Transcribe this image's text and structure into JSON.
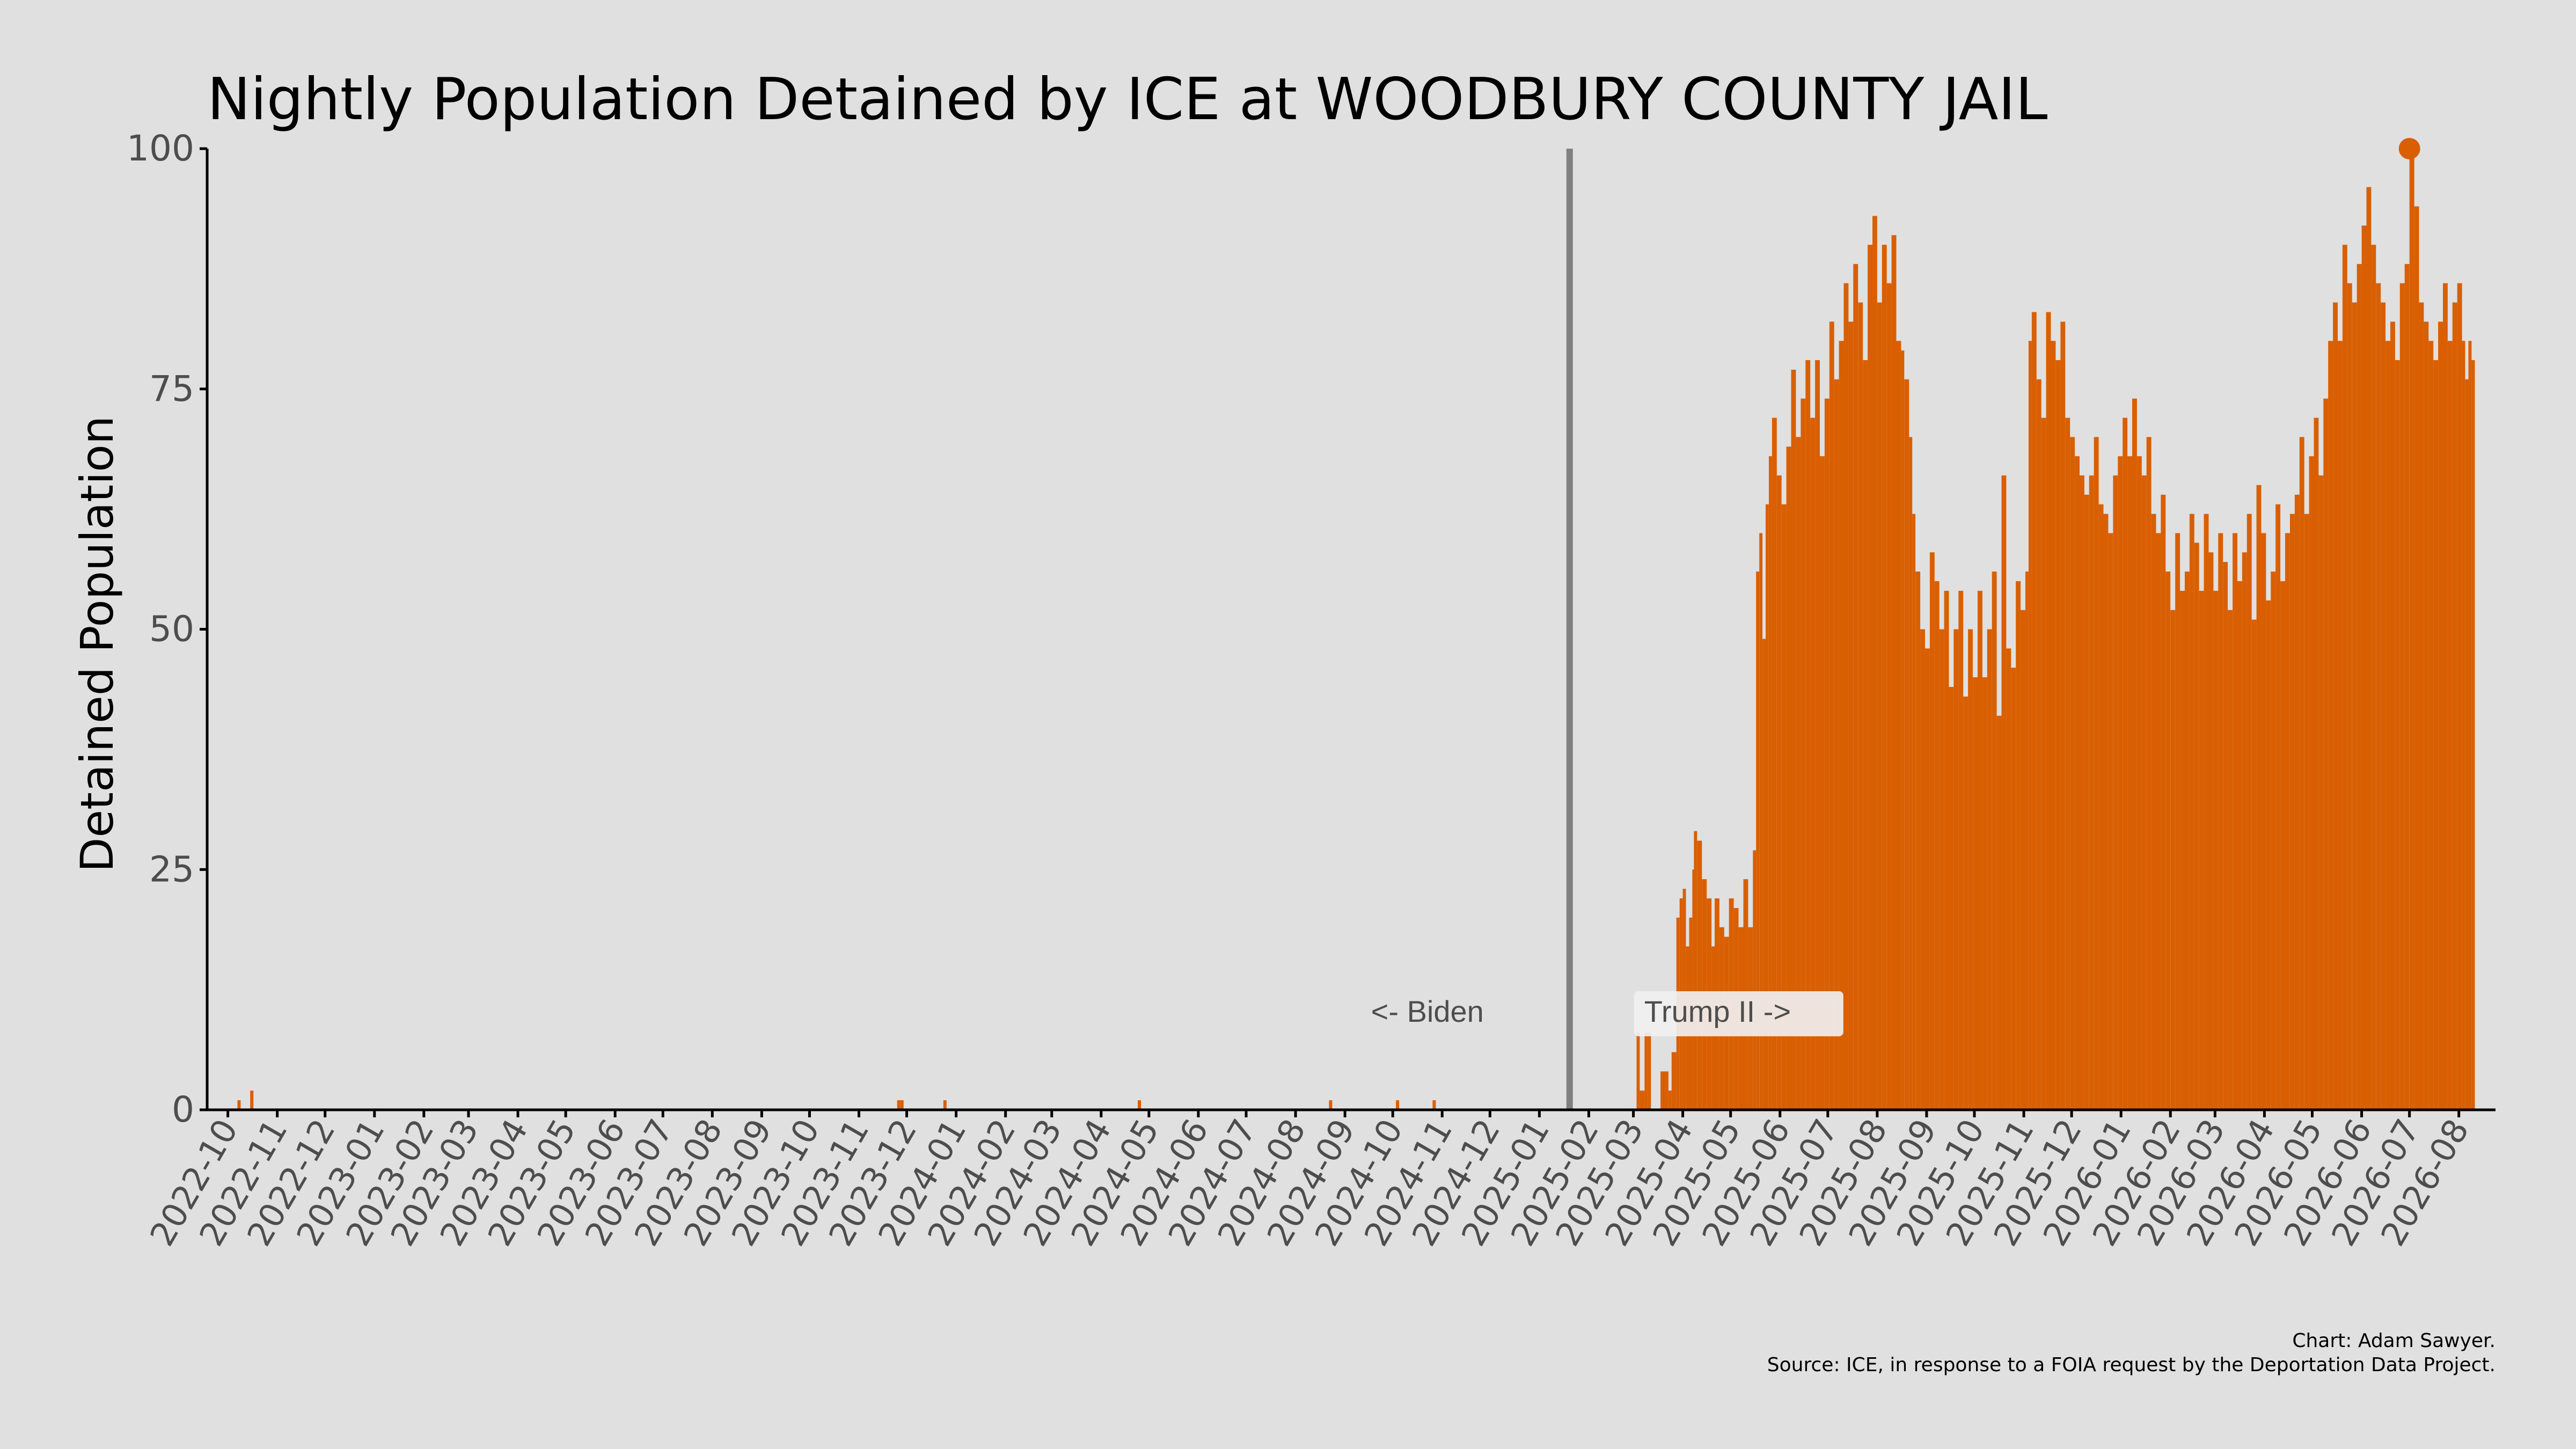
{
  "chart_data": {
    "type": "bar",
    "title": "Nightly Population Detained by ICE at WOODBURY COUNTY JAIL",
    "xlabel": "",
    "ylabel": "Detained Population",
    "x_axis": "date",
    "xlim": [
      "2022-09-18",
      "2026-08-24"
    ],
    "ylim": [
      0,
      100
    ],
    "y_ticks": [
      0,
      25,
      50,
      75,
      100
    ],
    "x_ticks": [
      "2022-10",
      "2022-11",
      "2022-12",
      "2023-01",
      "2023-02",
      "2023-03",
      "2023-04",
      "2023-05",
      "2023-06",
      "2023-07",
      "2023-08",
      "2023-09",
      "2023-10",
      "2023-11",
      "2023-12",
      "2024-01",
      "2024-02",
      "2024-03",
      "2024-04",
      "2024-05",
      "2024-06",
      "2024-07",
      "2024-08",
      "2024-09",
      "2024-10",
      "2024-11",
      "2024-12",
      "2025-01",
      "2025-02",
      "2025-03",
      "2025-04",
      "2025-05",
      "2025-06",
      "2025-07",
      "2025-08",
      "2025-09",
      "2025-10",
      "2025-11",
      "2025-12",
      "2026-01",
      "2026-02",
      "2026-03",
      "2026-04",
      "2026-05",
      "2026-06",
      "2026-07",
      "2026-08"
    ],
    "grid": false,
    "colors": {
      "bars": "#d95f02",
      "divider": "#808080",
      "background": "#e0e0e0",
      "axis": "#000000"
    },
    "divider": {
      "date": "2025-01-20",
      "left_label": "<- Biden",
      "right_label": "Trump II ->"
    },
    "peak_marker": {
      "date": "2026-07-01",
      "value": 100
    },
    "series": [
      {
        "points": [
          [
            "2022-10-07",
            1
          ],
          [
            "2022-10-15",
            2
          ],
          [
            "2023-11-25",
            1
          ],
          [
            "2023-11-27",
            1
          ],
          [
            "2023-12-24",
            1
          ],
          [
            "2024-04-24",
            1
          ],
          [
            "2024-08-22",
            1
          ],
          [
            "2024-10-03",
            1
          ],
          [
            "2024-10-26",
            1
          ],
          [
            "2025-03-03",
            8
          ],
          [
            "2025-03-05",
            2
          ],
          [
            "2025-03-08",
            8
          ],
          [
            "2025-03-10",
            8
          ],
          [
            "2025-03-18",
            4
          ],
          [
            "2025-03-20",
            4
          ],
          [
            "2025-03-23",
            2
          ],
          [
            "2025-03-25",
            6
          ],
          [
            "2025-03-28",
            20
          ],
          [
            "2025-03-30",
            22
          ],
          [
            "2025-04-01",
            23
          ],
          [
            "2025-04-03",
            17
          ],
          [
            "2025-04-05",
            20
          ],
          [
            "2025-04-07",
            25
          ],
          [
            "2025-04-08",
            29
          ],
          [
            "2025-04-10",
            28
          ],
          [
            "2025-04-13",
            24
          ],
          [
            "2025-04-16",
            22
          ],
          [
            "2025-04-19",
            17
          ],
          [
            "2025-04-21",
            22
          ],
          [
            "2025-04-24",
            19
          ],
          [
            "2025-04-27",
            18
          ],
          [
            "2025-04-30",
            22
          ],
          [
            "2025-05-03",
            21
          ],
          [
            "2025-05-06",
            19
          ],
          [
            "2025-05-09",
            24
          ],
          [
            "2025-05-12",
            19
          ],
          [
            "2025-05-15",
            27
          ],
          [
            "2025-05-17",
            56
          ],
          [
            "2025-05-19",
            60
          ],
          [
            "2025-05-21",
            49
          ],
          [
            "2025-05-23",
            63
          ],
          [
            "2025-05-25",
            68
          ],
          [
            "2025-05-27",
            72
          ],
          [
            "2025-05-30",
            66
          ],
          [
            "2025-06-02",
            63
          ],
          [
            "2025-06-05",
            69
          ],
          [
            "2025-06-08",
            77
          ],
          [
            "2025-06-11",
            70
          ],
          [
            "2025-06-14",
            74
          ],
          [
            "2025-06-17",
            78
          ],
          [
            "2025-06-20",
            72
          ],
          [
            "2025-06-23",
            78
          ],
          [
            "2025-06-26",
            68
          ],
          [
            "2025-06-29",
            74
          ],
          [
            "2025-07-02",
            82
          ],
          [
            "2025-07-05",
            76
          ],
          [
            "2025-07-08",
            80
          ],
          [
            "2025-07-11",
            86
          ],
          [
            "2025-07-14",
            82
          ],
          [
            "2025-07-17",
            88
          ],
          [
            "2025-07-20",
            84
          ],
          [
            "2025-07-23",
            78
          ],
          [
            "2025-07-26",
            90
          ],
          [
            "2025-07-29",
            93
          ],
          [
            "2025-08-01",
            84
          ],
          [
            "2025-08-04",
            90
          ],
          [
            "2025-08-07",
            86
          ],
          [
            "2025-08-10",
            91
          ],
          [
            "2025-08-13",
            80
          ],
          [
            "2025-08-16",
            79
          ],
          [
            "2025-08-18",
            76
          ],
          [
            "2025-08-21",
            70
          ],
          [
            "2025-08-23",
            62
          ],
          [
            "2025-08-25",
            56
          ],
          [
            "2025-08-28",
            50
          ],
          [
            "2025-08-31",
            48
          ],
          [
            "2025-09-03",
            58
          ],
          [
            "2025-09-06",
            55
          ],
          [
            "2025-09-09",
            50
          ],
          [
            "2025-09-12",
            54
          ],
          [
            "2025-09-15",
            44
          ],
          [
            "2025-09-18",
            50
          ],
          [
            "2025-09-21",
            54
          ],
          [
            "2025-09-24",
            43
          ],
          [
            "2025-09-27",
            50
          ],
          [
            "2025-09-30",
            45
          ],
          [
            "2025-10-03",
            54
          ],
          [
            "2025-10-06",
            45
          ],
          [
            "2025-10-09",
            50
          ],
          [
            "2025-10-12",
            56
          ],
          [
            "2025-10-15",
            41
          ],
          [
            "2025-10-18",
            66
          ],
          [
            "2025-10-21",
            48
          ],
          [
            "2025-10-24",
            46
          ],
          [
            "2025-10-27",
            55
          ],
          [
            "2025-10-30",
            52
          ],
          [
            "2025-11-02",
            56
          ],
          [
            "2025-11-04",
            80
          ],
          [
            "2025-11-06",
            83
          ],
          [
            "2025-11-09",
            76
          ],
          [
            "2025-11-12",
            72
          ],
          [
            "2025-11-15",
            83
          ],
          [
            "2025-11-18",
            80
          ],
          [
            "2025-11-21",
            78
          ],
          [
            "2025-11-24",
            82
          ],
          [
            "2025-11-27",
            72
          ],
          [
            "2025-11-30",
            70
          ],
          [
            "2025-12-03",
            68
          ],
          [
            "2025-12-06",
            66
          ],
          [
            "2025-12-09",
            64
          ],
          [
            "2025-12-12",
            66
          ],
          [
            "2025-12-15",
            70
          ],
          [
            "2025-12-18",
            63
          ],
          [
            "2025-12-21",
            62
          ],
          [
            "2025-12-24",
            60
          ],
          [
            "2025-12-27",
            66
          ],
          [
            "2025-12-30",
            68
          ],
          [
            "2026-01-02",
            72
          ],
          [
            "2026-01-05",
            68
          ],
          [
            "2026-01-08",
            74
          ],
          [
            "2026-01-11",
            68
          ],
          [
            "2026-01-14",
            66
          ],
          [
            "2026-01-17",
            70
          ],
          [
            "2026-01-20",
            62
          ],
          [
            "2026-01-23",
            60
          ],
          [
            "2026-01-26",
            64
          ],
          [
            "2026-01-29",
            56
          ],
          [
            "2026-02-01",
            52
          ],
          [
            "2026-02-04",
            60
          ],
          [
            "2026-02-07",
            54
          ],
          [
            "2026-02-10",
            56
          ],
          [
            "2026-02-13",
            62
          ],
          [
            "2026-02-16",
            59
          ],
          [
            "2026-02-19",
            54
          ],
          [
            "2026-02-22",
            62
          ],
          [
            "2026-02-25",
            58
          ],
          [
            "2026-02-28",
            54
          ],
          [
            "2026-03-03",
            60
          ],
          [
            "2026-03-06",
            57
          ],
          [
            "2026-03-09",
            52
          ],
          [
            "2026-03-12",
            60
          ],
          [
            "2026-03-15",
            55
          ],
          [
            "2026-03-18",
            58
          ],
          [
            "2026-03-21",
            62
          ],
          [
            "2026-03-24",
            51
          ],
          [
            "2026-03-27",
            65
          ],
          [
            "2026-03-30",
            60
          ],
          [
            "2026-04-02",
            53
          ],
          [
            "2026-04-05",
            56
          ],
          [
            "2026-04-08",
            63
          ],
          [
            "2026-04-11",
            55
          ],
          [
            "2026-04-14",
            60
          ],
          [
            "2026-04-17",
            62
          ],
          [
            "2026-04-20",
            64
          ],
          [
            "2026-04-23",
            70
          ],
          [
            "2026-04-26",
            62
          ],
          [
            "2026-04-29",
            68
          ],
          [
            "2026-05-02",
            72
          ],
          [
            "2026-05-05",
            66
          ],
          [
            "2026-05-08",
            74
          ],
          [
            "2026-05-11",
            80
          ],
          [
            "2026-05-14",
            84
          ],
          [
            "2026-05-17",
            80
          ],
          [
            "2026-05-20",
            90
          ],
          [
            "2026-05-23",
            86
          ],
          [
            "2026-05-26",
            84
          ],
          [
            "2026-05-29",
            88
          ],
          [
            "2026-06-01",
            92
          ],
          [
            "2026-06-04",
            96
          ],
          [
            "2026-06-07",
            90
          ],
          [
            "2026-06-10",
            86
          ],
          [
            "2026-06-13",
            84
          ],
          [
            "2026-06-16",
            80
          ],
          [
            "2026-06-19",
            82
          ],
          [
            "2026-06-22",
            78
          ],
          [
            "2026-06-25",
            86
          ],
          [
            "2026-06-28",
            88
          ],
          [
            "2026-07-01",
            100
          ],
          [
            "2026-07-04",
            94
          ],
          [
            "2026-07-07",
            84
          ],
          [
            "2026-07-10",
            82
          ],
          [
            "2026-07-13",
            80
          ],
          [
            "2026-07-16",
            78
          ],
          [
            "2026-07-19",
            82
          ],
          [
            "2026-07-22",
            86
          ],
          [
            "2026-07-25",
            80
          ],
          [
            "2026-07-28",
            84
          ],
          [
            "2026-07-31",
            86
          ],
          [
            "2026-08-03",
            80
          ],
          [
            "2026-08-05",
            76
          ],
          [
            "2026-08-07",
            80
          ],
          [
            "2026-08-09",
            78
          ]
        ]
      }
    ],
    "caption": [
      "Chart: Adam Sawyer.",
      "Source: ICE, in response to a FOIA request by the Deportation Data Project."
    ]
  }
}
